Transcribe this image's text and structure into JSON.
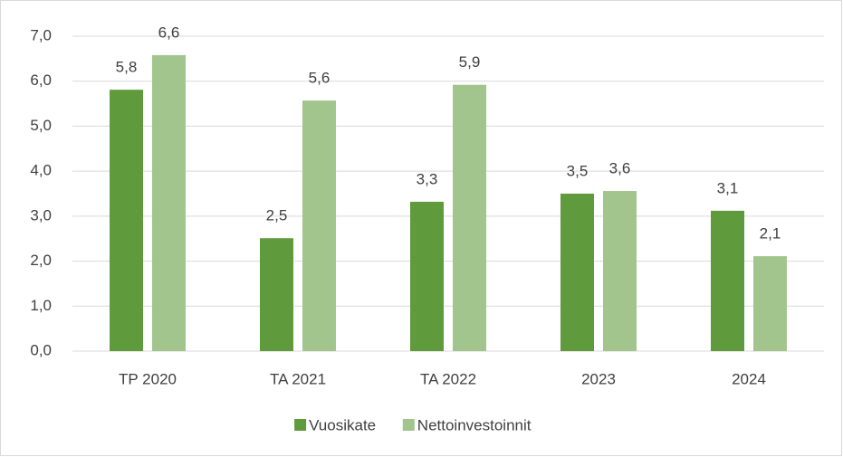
{
  "chart_data": {
    "type": "bar",
    "categories": [
      "TP 2020",
      "TA 2021",
      "TA 2022",
      "2023",
      "2024"
    ],
    "series": [
      {
        "name": "Vuosikate",
        "color": "#5f9a3c",
        "values": [
          5.81,
          2.51,
          3.32,
          3.5,
          3.12
        ],
        "value_labels": [
          "5,8",
          "2,5",
          "3,3",
          "3,5",
          "3,1"
        ]
      },
      {
        "name": "Nettoinvestoinnit",
        "color": "#a2c58e",
        "values": [
          6.58,
          5.57,
          5.92,
          3.56,
          2.11
        ],
        "value_labels": [
          "6,6",
          "5,6",
          "5,9",
          "3,6",
          "2,1"
        ]
      }
    ],
    "ylim": [
      0,
      7
    ],
    "yticks": [
      {
        "value": 0,
        "label": "0,0"
      },
      {
        "value": 1,
        "label": "1,0"
      },
      {
        "value": 2,
        "label": "2,0"
      },
      {
        "value": 3,
        "label": "3,0"
      },
      {
        "value": 4,
        "label": "4,0"
      },
      {
        "value": 5,
        "label": "5,0"
      },
      {
        "value": 6,
        "label": "6,0"
      },
      {
        "value": 7,
        "label": "7,0"
      }
    ],
    "grid": true,
    "legend": "bottom"
  }
}
